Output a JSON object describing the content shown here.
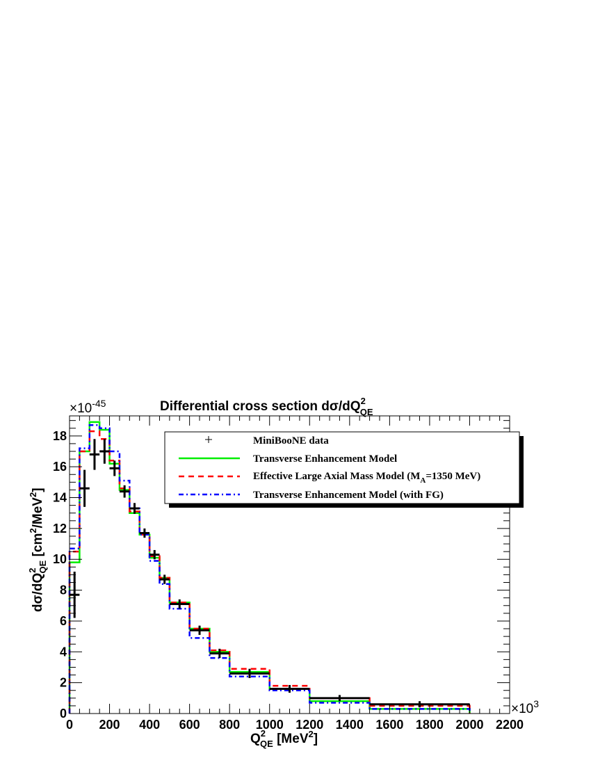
{
  "chart_data": {
    "type": "line",
    "title": "Differential cross section dσ/dQ²QE",
    "title_parts": {
      "main": "Differential cross section dσ/dQ",
      "sup": "2",
      "sub": "QE"
    },
    "xlabel": "Q²QE [MeV²]",
    "xlabel_parts": {
      "main": "Q",
      "sup": "2",
      "sub": "QE",
      "unit": " [MeV",
      "unit_sup": "2",
      "unit_end": "]"
    },
    "ylabel": "dσ/dQ²QE [cm²/MeV²]",
    "ylabel_parts": {
      "main": "dσ/dQ",
      "sup": "2",
      "sub": "QE",
      "unit": " [cm",
      "unit_sup": "2",
      "unit_mid": "/MeV",
      "unit_sup2": "2",
      "unit_end": "]"
    },
    "x_multiplier": "×10³",
    "x_multiplier_parts": {
      "base": "×10",
      "exp": "3"
    },
    "y_multiplier": "×10⁻⁴⁵",
    "y_multiplier_parts": {
      "base": "×10",
      "exp": "-45"
    },
    "xlim": [
      0,
      2200
    ],
    "ylim": [
      0,
      19.3
    ],
    "xticks": [
      0,
      200,
      400,
      600,
      800,
      1000,
      1200,
      1400,
      1600,
      1800,
      2000,
      2200
    ],
    "yticks": [
      0,
      2,
      4,
      6,
      8,
      10,
      12,
      14,
      16,
      18
    ],
    "grid": false,
    "legend_position": "top-right",
    "bin_edges": [
      0,
      50,
      100,
      150,
      200,
      250,
      300,
      350,
      400,
      450,
      500,
      600,
      700,
      800,
      1000,
      1200,
      1500,
      2000
    ],
    "series": [
      {
        "name": "MiniBooNE data",
        "style": "points",
        "color": "#000000",
        "x": [
          25,
          75,
          125,
          175,
          225,
          275,
          325,
          375,
          425,
          475,
          550,
          650,
          750,
          900,
          1100,
          1350,
          1750
        ],
        "y": [
          7.7,
          14.6,
          16.8,
          17.0,
          15.9,
          14.4,
          13.3,
          11.7,
          10.3,
          8.7,
          7.1,
          5.4,
          3.9,
          2.6,
          1.6,
          1.0,
          0.6
        ],
        "yerr": [
          1.5,
          1.2,
          1.0,
          0.8,
          0.5,
          0.4,
          0.35,
          0.3,
          0.3,
          0.3,
          0.3,
          0.3,
          0.3,
          0.3,
          0.25,
          0.2,
          0.2
        ]
      },
      {
        "name": "Transverse Enhancement Model",
        "style": "solid",
        "color": "#00ee00",
        "values": [
          9.8,
          17.0,
          18.9,
          18.4,
          16.2,
          14.5,
          13.0,
          11.6,
          10.1,
          8.8,
          7.2,
          5.5,
          4.0,
          2.7,
          1.6,
          0.8,
          0.3
        ]
      },
      {
        "name": "Effective Large Axial Mass Model (MA=1350 MeV)",
        "name_parts": {
          "main": "Effective Large Axial Mass Model (M",
          "sub": "A",
          "end": "=1350 MeV)"
        },
        "style": "dashed",
        "color": "#ff0000",
        "values": [
          10.5,
          17.0,
          18.3,
          17.8,
          16.4,
          14.6,
          13.1,
          11.6,
          10.2,
          8.8,
          7.2,
          5.5,
          4.1,
          2.9,
          1.8,
          1.0,
          0.5
        ]
      },
      {
        "name": "Transverse Enhancement Model (with FG)",
        "style": "dashdot",
        "color": "#0000ff",
        "values": [
          10.7,
          17.2,
          18.7,
          18.5,
          17.0,
          15.1,
          13.3,
          11.6,
          9.9,
          8.4,
          6.8,
          4.9,
          3.6,
          2.4,
          1.5,
          0.7,
          0.3
        ]
      }
    ]
  }
}
